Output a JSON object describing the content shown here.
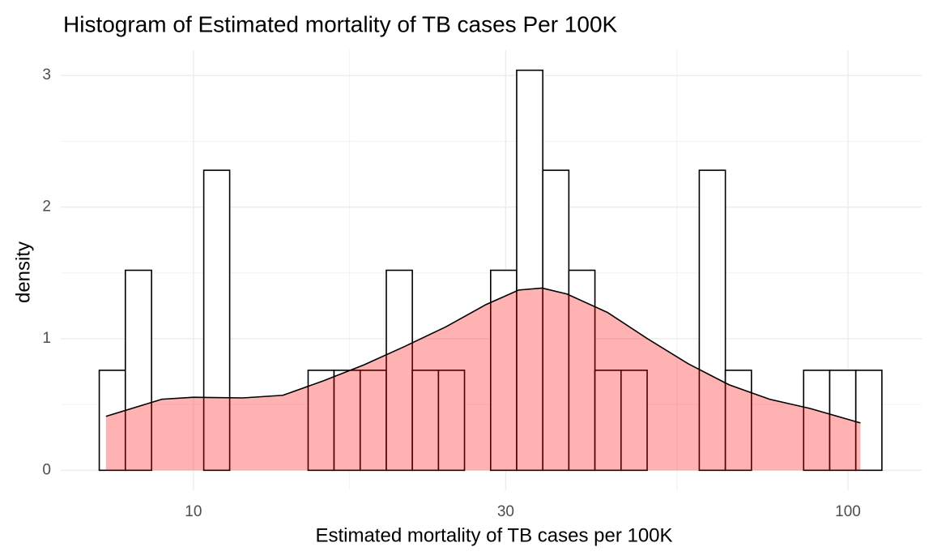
{
  "chart_data": {
    "type": "histogram",
    "title": "Histogram of Estimated mortality of TB cases Per 100K",
    "x_label": "Estimated mortality of TB cases per 100K",
    "y_label": "density",
    "log_x": true,
    "grid": true,
    "bins": [
      7.18,
      7.87,
      8.63,
      9.46,
      10.37,
      11.36,
      12.46,
      13.65,
      14.97,
      16.4,
      17.98,
      19.71,
      21.6,
      23.68,
      25.95,
      28.45,
      31.18,
      34.18,
      37.46,
      41.06,
      45.01,
      49.34,
      54.08,
      59.27,
      64.97,
      71.21,
      78.06,
      85.56,
      93.78,
      102.8,
      112.68
    ],
    "values": [
      0.76,
      1.52,
      0,
      0,
      2.28,
      0,
      0,
      0,
      0.76,
      0.76,
      0.76,
      1.52,
      0.76,
      0.76,
      0,
      1.52,
      3.04,
      2.28,
      1.52,
      0.76,
      0.76,
      0,
      0,
      2.28,
      0.76,
      0,
      0,
      0.76,
      0.76,
      0.76
    ],
    "color": "#ffffff",
    "edge_color": "#000000",
    "density": {
      "x": [
        7.35,
        8.95,
        10,
        11.9,
        13.7,
        15.8,
        18.2,
        21.0,
        24.3,
        28.0,
        31.4,
        34.1,
        37.2,
        42.9,
        49.4,
        57.0,
        65.8,
        75.9,
        87.5,
        104.5
      ],
      "values": [
        0.41,
        0.54,
        0.555,
        0.55,
        0.57,
        0.68,
        0.8,
        0.94,
        1.09,
        1.26,
        1.37,
        1.385,
        1.34,
        1.2,
        1.0,
        0.81,
        0.65,
        0.54,
        0.47,
        0.36
      ],
      "color": "#ff0000",
      "alpha": 0.3
    },
    "xlim": [
      6.27,
      129.6
    ],
    "ylim": [
      -0.152,
      3.192
    ],
    "xticks": [
      10,
      30,
      100
    ],
    "yticks": [
      0,
      1,
      2,
      3
    ]
  }
}
